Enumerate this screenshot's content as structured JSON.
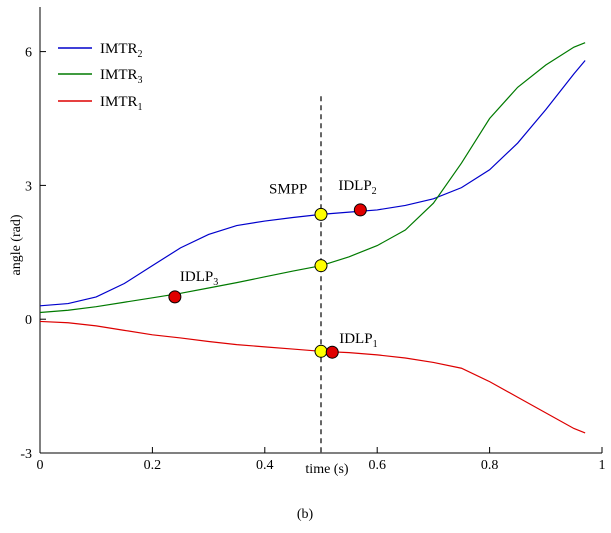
{
  "chart_data": {
    "type": "line",
    "caption": "(b)",
    "xlabel": "time (s)",
    "ylabel": "angle (rad)",
    "xlim": [
      0,
      1
    ],
    "ylim": [
      -3,
      7
    ],
    "xticks": [
      0,
      0.2,
      0.4,
      0.6,
      0.8,
      1
    ],
    "xtick_labels": [
      "0",
      "0.2",
      "0.4",
      "0.6",
      "0.8",
      "1"
    ],
    "yticks": [
      -3,
      0,
      3,
      6
    ],
    "ytick_labels": [
      "-3",
      "0",
      "3",
      "6"
    ],
    "legend_placement": "top-left",
    "grid": false,
    "vertical_line_x": 0.5,
    "series": [
      {
        "name": "IMTR",
        "subscript": "2",
        "color": "#0000cc",
        "x": [
          0,
          0.05,
          0.1,
          0.15,
          0.2,
          0.25,
          0.3,
          0.35,
          0.4,
          0.45,
          0.5,
          0.55,
          0.6,
          0.65,
          0.7,
          0.75,
          0.8,
          0.85,
          0.9,
          0.95,
          0.97
        ],
        "y": [
          0.3,
          0.35,
          0.5,
          0.8,
          1.2,
          1.6,
          1.9,
          2.1,
          2.2,
          2.28,
          2.35,
          2.4,
          2.45,
          2.55,
          2.7,
          2.95,
          3.35,
          3.95,
          4.7,
          5.5,
          5.8
        ]
      },
      {
        "name": "IMTR",
        "subscript": "3",
        "color": "#007a00",
        "x": [
          0,
          0.05,
          0.1,
          0.15,
          0.2,
          0.25,
          0.3,
          0.35,
          0.4,
          0.45,
          0.5,
          0.55,
          0.6,
          0.65,
          0.7,
          0.75,
          0.8,
          0.85,
          0.9,
          0.95,
          0.97
        ],
        "y": [
          0.15,
          0.2,
          0.28,
          0.38,
          0.48,
          0.58,
          0.7,
          0.82,
          0.95,
          1.08,
          1.2,
          1.4,
          1.65,
          2.0,
          2.6,
          3.5,
          4.5,
          5.2,
          5.7,
          6.1,
          6.2
        ]
      },
      {
        "name": "IMTR",
        "subscript": "1",
        "color": "#dd0000",
        "x": [
          0,
          0.05,
          0.1,
          0.15,
          0.2,
          0.25,
          0.3,
          0.35,
          0.4,
          0.45,
          0.5,
          0.55,
          0.6,
          0.65,
          0.7,
          0.75,
          0.8,
          0.85,
          0.9,
          0.95,
          0.97
        ],
        "y": [
          -0.05,
          -0.08,
          -0.15,
          -0.25,
          -0.35,
          -0.42,
          -0.5,
          -0.57,
          -0.62,
          -0.67,
          -0.72,
          -0.75,
          -0.8,
          -0.87,
          -0.97,
          -1.1,
          -1.4,
          -1.75,
          -2.1,
          -2.45,
          -2.55
        ]
      }
    ],
    "points": [
      {
        "label": "SMPP",
        "subscript": "",
        "x": 0.5,
        "y": 2.35,
        "color": "#ffff00"
      },
      {
        "label": "",
        "subscript": "",
        "x": 0.5,
        "y": 1.2,
        "color": "#ffff00"
      },
      {
        "label": "",
        "subscript": "",
        "x": 0.5,
        "y": -0.72,
        "color": "#ffff00"
      },
      {
        "label": "IDLP",
        "subscript": "2",
        "x": 0.57,
        "y": 2.45,
        "color": "#e00000"
      },
      {
        "label": "IDLP",
        "subscript": "3",
        "x": 0.24,
        "y": 0.5,
        "color": "#e00000"
      },
      {
        "label": "IDLP",
        "subscript": "1",
        "x": 0.52,
        "y": -0.74,
        "color": "#e00000"
      }
    ]
  }
}
